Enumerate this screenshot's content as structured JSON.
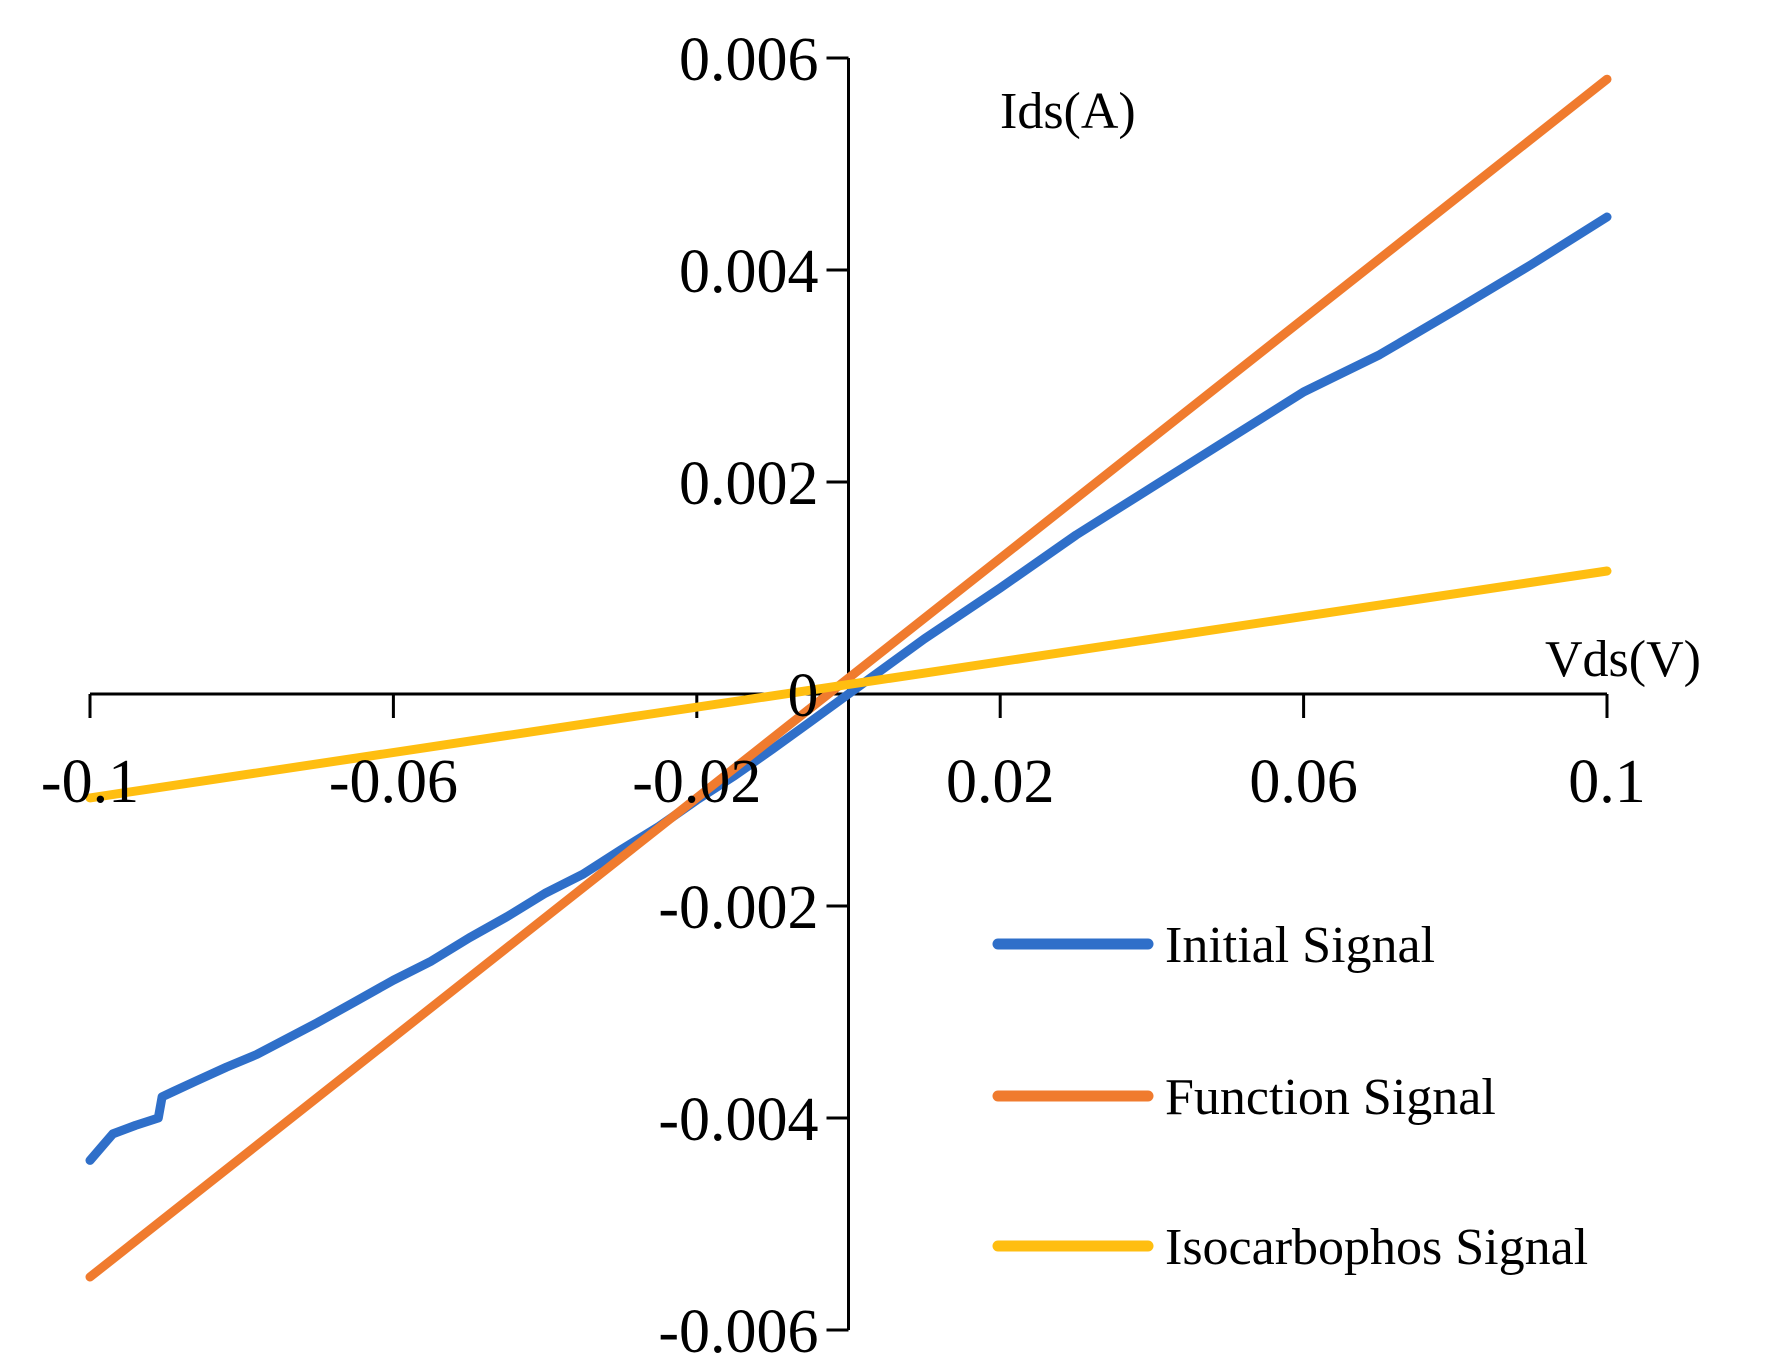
{
  "chart_data": {
    "type": "line",
    "title": "",
    "xlabel": "Vds(V)",
    "ylabel": "Ids(A)",
    "xlim": [
      -0.1,
      0.1
    ],
    "ylim": [
      -0.006,
      0.006
    ],
    "x_ticks": [
      -0.1,
      -0.06,
      -0.02,
      0.02,
      0.06,
      0.1
    ],
    "x_tick_labels": [
      "-0.1",
      "-0.06",
      "-0.02",
      "0.02",
      "0.06",
      "0.1"
    ],
    "y_ticks": [
      0.006,
      0.004,
      0.002,
      0,
      -0.002,
      -0.004,
      -0.006
    ],
    "y_tick_labels": [
      "0.006",
      "0.004",
      "0.002",
      "0",
      "-0.002",
      "-0.004",
      "-0.006"
    ],
    "grid": false,
    "legend_position": "bottom-right",
    "series": [
      {
        "name": "Initial Signal",
        "color": "#2F6FC9",
        "x": [
          -0.1,
          -0.097,
          -0.094,
          -0.091,
          -0.0905,
          -0.089,
          -0.086,
          -0.082,
          -0.078,
          -0.074,
          -0.07,
          -0.065,
          -0.06,
          -0.055,
          -0.05,
          -0.045,
          -0.04,
          -0.035,
          -0.03,
          -0.025,
          -0.02,
          -0.015,
          -0.01,
          -0.005,
          0,
          0.01,
          0.02,
          0.03,
          0.04,
          0.05,
          0.06,
          0.07,
          0.08,
          0.09,
          0.1
        ],
        "y": [
          -0.0044,
          -0.00415,
          -0.00407,
          -0.004,
          -0.0038,
          -0.00375,
          -0.00365,
          -0.00352,
          -0.0034,
          -0.00325,
          -0.0031,
          -0.0029,
          -0.0027,
          -0.00252,
          -0.0023,
          -0.0021,
          -0.00188,
          -0.0017,
          -0.00147,
          -0.00125,
          -0.001,
          -0.00077,
          -0.00052,
          -0.00026,
          0,
          0.00052,
          0.001,
          0.0015,
          0.00195,
          0.0024,
          0.00285,
          0.0032,
          0.00362,
          0.00405,
          0.0045
        ]
      },
      {
        "name": "Function Signal",
        "color": "#F07B2E",
        "x": [
          -0.1,
          0.1
        ],
        "y": [
          -0.0055,
          0.0058
        ]
      },
      {
        "name": "Isocarbophos Signal",
        "color": "#FFBE10",
        "x": [
          -0.1,
          0.1
        ],
        "y": [
          -0.00098,
          0.00116
        ]
      }
    ]
  }
}
